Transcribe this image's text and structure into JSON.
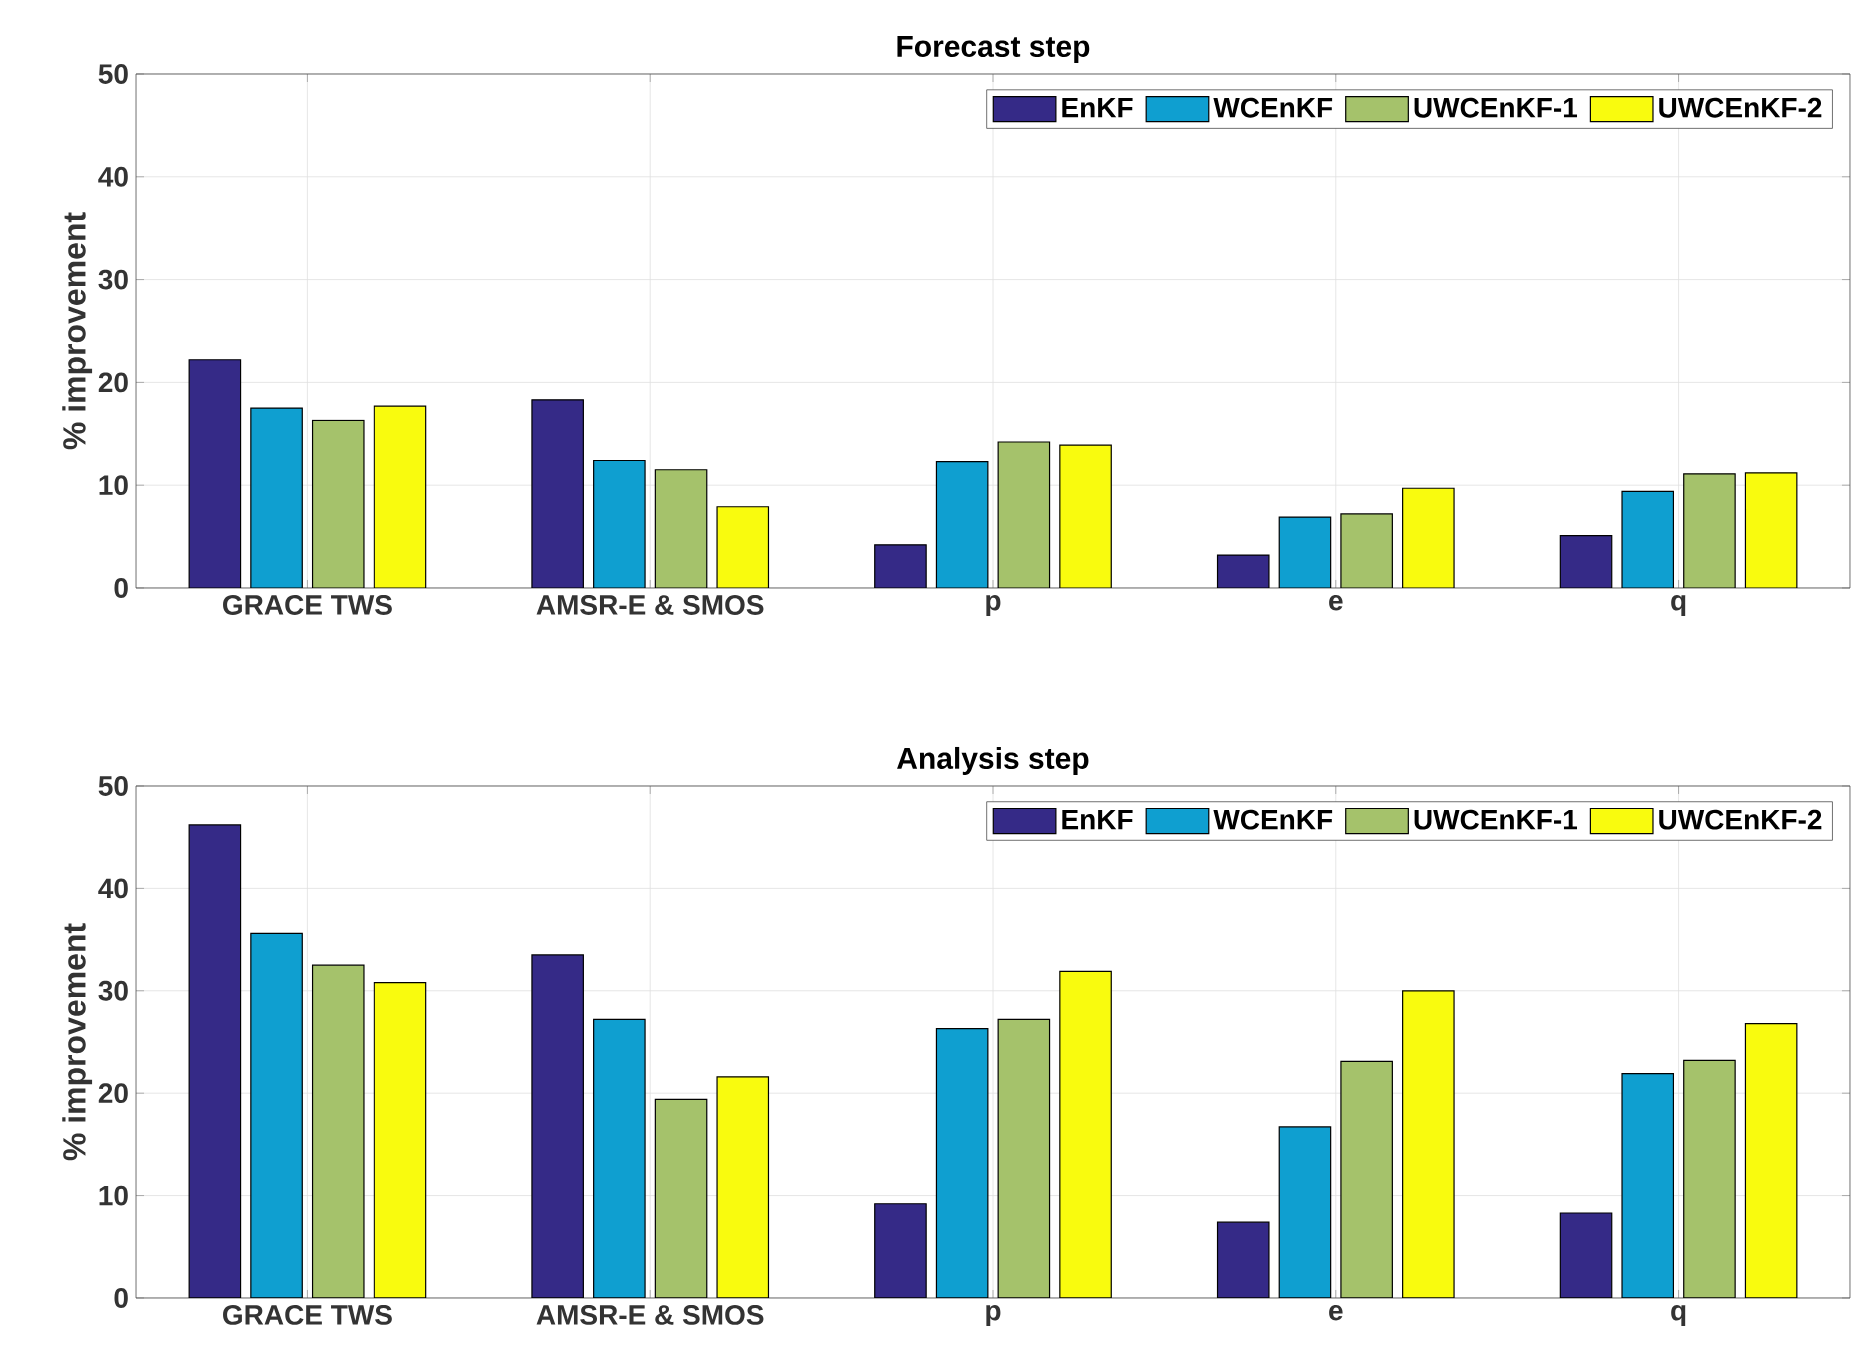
{
  "chart_data": [
    {
      "type": "bar",
      "title": "Forecast step",
      "ylabel": "% improvement",
      "categories": [
        "GRACE TWS",
        "AMSR-E & SMOS",
        "p",
        "e",
        "q"
      ],
      "series": [
        {
          "name": "EnKF",
          "color": "#352a87",
          "values": [
            22.2,
            18.3,
            4.2,
            3.2,
            5.1
          ]
        },
        {
          "name": "WCEnKF",
          "color": "#0f9fd0",
          "values": [
            17.5,
            12.4,
            12.3,
            6.9,
            9.4
          ]
        },
        {
          "name": "UWCEnKF-1",
          "color": "#a5c26b",
          "values": [
            16.3,
            11.5,
            14.2,
            7.2,
            11.1
          ]
        },
        {
          "name": "UWCEnKF-2",
          "color": "#f9fb0e",
          "values": [
            17.7,
            7.9,
            13.9,
            9.7,
            11.2
          ]
        }
      ],
      "ylim": [
        0,
        50
      ],
      "yticks": [
        0,
        10,
        20,
        30,
        40,
        50
      ],
      "grid": true,
      "legend": "top right"
    },
    {
      "type": "bar",
      "title": "Analysis step",
      "ylabel": "% improvement",
      "categories": [
        "GRACE TWS",
        "AMSR-E & SMOS",
        "p",
        "e",
        "q"
      ],
      "series": [
        {
          "name": "EnKF",
          "color": "#352a87",
          "values": [
            46.2,
            33.5,
            9.2,
            7.4,
            8.3
          ]
        },
        {
          "name": "WCEnKF",
          "color": "#0f9fd0",
          "values": [
            35.6,
            27.2,
            26.3,
            16.7,
            21.9
          ]
        },
        {
          "name": "UWCEnKF-1",
          "color": "#a5c26b",
          "values": [
            32.5,
            19.4,
            27.2,
            23.1,
            23.2
          ]
        },
        {
          "name": "UWCEnKF-2",
          "color": "#f9fb0e",
          "values": [
            30.8,
            21.6,
            31.9,
            30.0,
            26.8
          ]
        }
      ],
      "ylim": [
        0,
        50
      ],
      "yticks": [
        0,
        10,
        20,
        30,
        40,
        50
      ],
      "grid": true,
      "legend": "top right"
    }
  ]
}
